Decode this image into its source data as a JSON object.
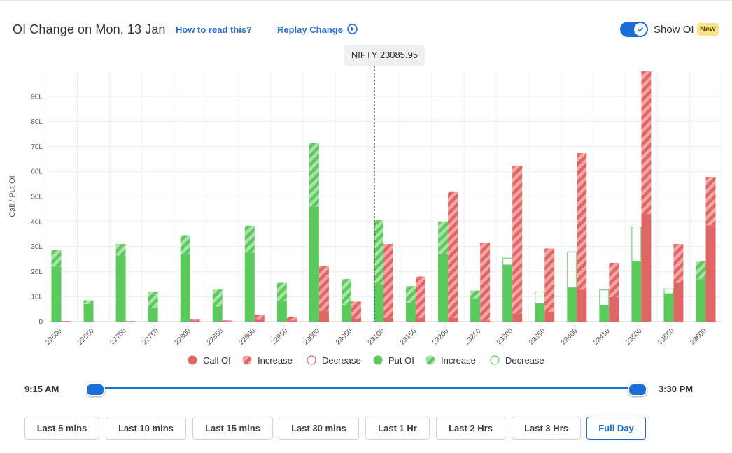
{
  "header": {
    "title": "OI Change on Mon, 13 Jan",
    "how_to_read": "How to read this?",
    "replay_label": "Replay Change",
    "show_oi_label": "Show OI",
    "show_oi_enabled": true,
    "new_badge": "New"
  },
  "spot_tag": "NIFTY 23085.95",
  "legend": {
    "call_oi": "Call OI",
    "call_increase": "Increase",
    "call_decrease": "Decrease",
    "put_oi": "Put OI",
    "put_increase": "Increase",
    "put_decrease": "Decrease"
  },
  "time_range": {
    "start": "9:15 AM",
    "end": "3:30 PM"
  },
  "range_buttons": [
    {
      "label": "Last 5 mins",
      "active": false
    },
    {
      "label": "Last 10 mins",
      "active": false
    },
    {
      "label": "Last 15 mins",
      "active": false
    },
    {
      "label": "Last 30 mins",
      "active": false
    },
    {
      "label": "Last 1 Hr",
      "active": false
    },
    {
      "label": "Last 2 Hrs",
      "active": false
    },
    {
      "label": "Last 3 Hrs",
      "active": false
    },
    {
      "label": "Full Day",
      "active": true
    }
  ],
  "colors": {
    "call": "#e06666",
    "call_light": "#f2a6a6",
    "put": "#5cc95c",
    "put_light": "#a9e3a9",
    "accent": "#1a6fd6"
  },
  "chart_data": {
    "type": "bar",
    "ylabel": "Call / Put OI",
    "y_unit": "L",
    "ylim": [
      0,
      100
    ],
    "y_ticks": [
      0,
      10,
      20,
      30,
      40,
      50,
      60,
      70,
      80,
      90
    ],
    "y_tick_labels": [
      "0",
      "10L",
      "20L",
      "30L",
      "40L",
      "50L",
      "60L",
      "70L",
      "80L",
      "90L"
    ],
    "grid": true,
    "spot_strike": 23085.95,
    "categories": [
      "22600",
      "22650",
      "22700",
      "22750",
      "22800",
      "22850",
      "22900",
      "22950",
      "23000",
      "23050",
      "23100",
      "23150",
      "23200",
      "23250",
      "23300",
      "23350",
      "23400",
      "23450",
      "23500",
      "23550",
      "23600"
    ],
    "series": [
      {
        "name": "Put OI",
        "base": [
          22,
          7,
          26.5,
          5.5,
          27,
          6,
          27.5,
          8.3,
          46,
          6.5,
          15,
          7.5,
          27,
          9.2,
          22.5,
          7,
          13.5,
          6.3,
          24,
          11,
          17
        ],
        "increase": [
          6.5,
          1.5,
          4.5,
          6.5,
          7.5,
          6.8,
          10.8,
          7.2,
          25.5,
          10.5,
          25.5,
          6.7,
          13,
          3.2,
          0,
          0,
          0,
          0,
          0,
          0,
          7
        ],
        "decrease": [
          0,
          0,
          0,
          0,
          0,
          0,
          0,
          0,
          0,
          0,
          0,
          0,
          0,
          0,
          3,
          5,
          14.5,
          6.5,
          14,
          2.2,
          0
        ]
      },
      {
        "name": "Call OI",
        "base": [
          0.2,
          0,
          0.2,
          0,
          0.5,
          0.2,
          0.8,
          0.5,
          4.2,
          1,
          1.5,
          1.5,
          1.5,
          0.5,
          3.3,
          4,
          12.8,
          9.8,
          43,
          15.5,
          38.5
        ],
        "increase": [
          0,
          0,
          0,
          0,
          0.3,
          0.3,
          2,
          1.5,
          18,
          7,
          29.5,
          16.5,
          50.5,
          31,
          59,
          25.2,
          54.5,
          13.7,
          57,
          15.5,
          19.3
        ],
        "decrease": [
          0,
          0,
          0,
          0,
          0,
          0,
          0,
          0,
          0,
          0,
          0,
          0,
          0,
          0,
          0,
          0,
          0,
          0,
          0,
          0,
          0
        ]
      }
    ]
  }
}
